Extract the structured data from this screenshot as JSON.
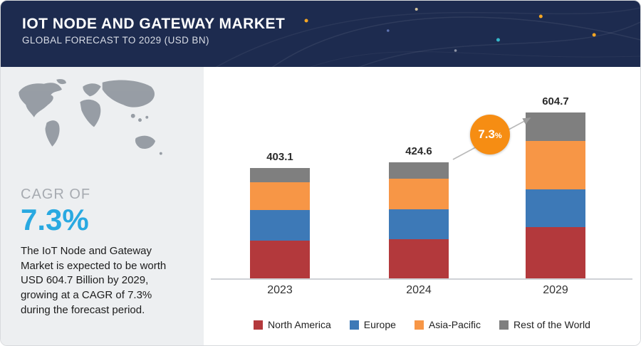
{
  "header": {
    "title": "IOT NODE AND GATEWAY MARKET",
    "subtitle": "GLOBAL FORECAST TO 2029 (USD BN)"
  },
  "sidebar": {
    "cagr_label": "CAGR OF",
    "cagr_value": "7.3%",
    "description": "The IoT Node and Gateway Market is expected to be worth USD 604.7 Billion by 2029, growing at a CAGR of 7.3% during the forecast period."
  },
  "badge": {
    "value": "7.3",
    "percent": "%"
  },
  "colors": {
    "navy": "#1d2b4f",
    "accent-blue": "#29a9e1",
    "badge-orange": "#f68d13"
  },
  "chart_data": {
    "type": "bar",
    "stacked": true,
    "title": "IoT Node and Gateway Market, Global Forecast to 2029 (USD BN)",
    "categories": [
      "2023",
      "2024",
      "2029"
    ],
    "totals": [
      403.1,
      424.6,
      604.7
    ],
    "series": [
      {
        "name": "North America",
        "color": "#b3393c",
        "values": [
          137.0,
          143.0,
          187.0
        ]
      },
      {
        "name": "Europe",
        "color": "#3d79b7",
        "values": [
          112.0,
          110.0,
          138.0
        ]
      },
      {
        "name": "Asia-Pacific",
        "color": "#f79646",
        "values": [
          101.0,
          112.0,
          176.0
        ]
      },
      {
        "name": "Rest of the World",
        "color": "#7f7f7f",
        "values": [
          53.1,
          59.6,
          103.7
        ]
      }
    ],
    "ylim": [
      0,
      650
    ],
    "grid": false,
    "legend_position": "bottom",
    "annotation": "7.3% CAGR arrow from 2024 to 2029; segment values estimated from bar heights"
  }
}
